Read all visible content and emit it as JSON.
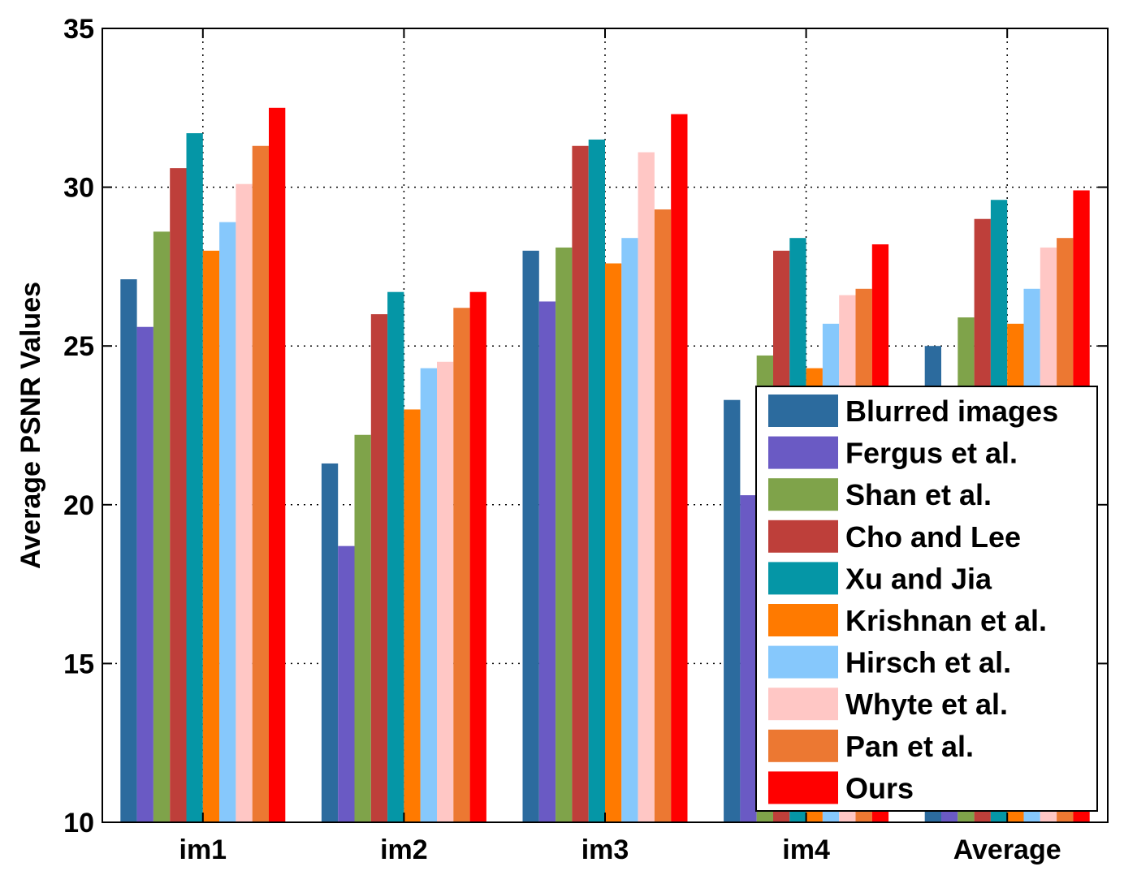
{
  "chart_data": {
    "type": "bar",
    "title": "",
    "xlabel": "",
    "ylabel": "Average PSNR Values",
    "ylim": [
      10,
      35
    ],
    "yticks": [
      10,
      15,
      20,
      25,
      30,
      35
    ],
    "grid": true,
    "legend_position": "bottom-right",
    "categories": [
      "im1",
      "im2",
      "im3",
      "im4",
      "Average"
    ],
    "series": [
      {
        "name": "Blurred images",
        "color": "#2C6B9E",
        "values": [
          27.1,
          21.3,
          28.0,
          23.3,
          25.0
        ]
      },
      {
        "name": "Fergus et al.",
        "color": "#6A5AC4",
        "values": [
          25.6,
          18.7,
          26.4,
          20.3,
          22.8
        ]
      },
      {
        "name": "Shan et al.",
        "color": "#7FA34A",
        "values": [
          28.6,
          22.2,
          28.1,
          24.7,
          25.9
        ]
      },
      {
        "name": "Cho and Lee",
        "color": "#BE3F3A",
        "values": [
          30.6,
          26.0,
          31.3,
          28.0,
          29.0
        ]
      },
      {
        "name": "Xu and Jia",
        "color": "#0596A6",
        "values": [
          31.7,
          26.7,
          31.5,
          28.4,
          29.6
        ]
      },
      {
        "name": "Krishnan et al.",
        "color": "#FF7A00",
        "values": [
          28.0,
          23.0,
          27.6,
          24.3,
          25.7
        ]
      },
      {
        "name": "Hirsch et al.",
        "color": "#86C8FC",
        "values": [
          28.9,
          24.3,
          28.4,
          25.7,
          26.8
        ]
      },
      {
        "name": "Whyte et al.",
        "color": "#FFC7C5",
        "values": [
          30.1,
          24.5,
          31.1,
          26.6,
          28.1
        ]
      },
      {
        "name": "Pan et al.",
        "color": "#EC7832",
        "values": [
          31.3,
          26.2,
          29.3,
          26.8,
          28.4
        ]
      },
      {
        "name": "Ours",
        "color": "#FF0000",
        "values": [
          32.5,
          26.7,
          32.3,
          28.2,
          29.9
        ]
      }
    ]
  }
}
